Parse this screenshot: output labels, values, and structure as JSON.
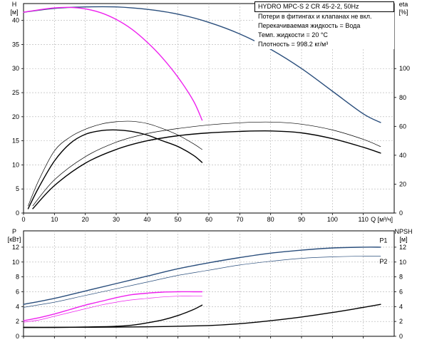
{
  "info": {
    "model": "HYDRO MPC-S 2 CR 45-2-2, 50Hz",
    "notes": [
      "Потери в фитингах и клапанах не вкл.",
      "Перекачиваемая жидкость = Вода",
      "Темп. жидкости = 20 °C",
      "Плотность = 998.2 кг/м³"
    ]
  },
  "chart_data": [
    {
      "type": "line",
      "panel": "top",
      "xlabel": "Q [м³/ч]",
      "x_ticks": [
        0,
        10,
        20,
        30,
        40,
        50,
        60,
        70,
        80,
        90,
        100,
        110
      ],
      "xlim": [
        0,
        120
      ],
      "grid": true,
      "left_axis": {
        "label": [
          "H",
          "[м]"
        ],
        "ticks": [
          0,
          5,
          10,
          15,
          20,
          25,
          30,
          35,
          40
        ],
        "ylim": [
          0,
          43.5
        ]
      },
      "right_axis": {
        "label": [
          "eta",
          "[%]"
        ],
        "ticks": [
          0,
          20,
          40,
          60,
          80,
          100
        ],
        "ylim": [
          0,
          145
        ]
      },
      "series": [
        {
          "kind": "head",
          "axis": "left",
          "color": "#2a4e7c",
          "width": 1.4,
          "x": [
            0,
            10,
            20,
            30,
            40,
            50,
            60,
            70,
            80,
            90,
            100,
            110,
            115.6
          ],
          "y": [
            41.7,
            42.5,
            42.8,
            42.8,
            42.3,
            41.3,
            39.6,
            37.2,
            34.0,
            30.0,
            25.3,
            20.6,
            18.8
          ]
        },
        {
          "kind": "head",
          "axis": "left",
          "color": "#ee22ee",
          "width": 1.4,
          "x": [
            0,
            5,
            10,
            15,
            20,
            25,
            30,
            35,
            40,
            45,
            50,
            55,
            57.8
          ],
          "y": [
            41.7,
            42.2,
            42.6,
            42.7,
            42.4,
            41.6,
            40.2,
            38.2,
            35.5,
            32.2,
            28.2,
            23.3,
            19.3
          ]
        },
        {
          "kind": "efficiency",
          "axis": "right",
          "color": "#000000",
          "width": 1.4,
          "x": [
            1.5,
            5,
            10,
            15,
            20,
            25,
            30,
            35,
            40,
            45,
            50,
            55,
            57.8
          ],
          "y": [
            3,
            18,
            36,
            48,
            54.5,
            57,
            57.5,
            56.5,
            54,
            50,
            46,
            40,
            35
          ]
        },
        {
          "kind": "efficiency",
          "axis": "right",
          "color": "#000000",
          "width": 0.7,
          "x": [
            1.5,
            5,
            10,
            15,
            20,
            25,
            30,
            35,
            40,
            45,
            50,
            55,
            57.8
          ],
          "y": [
            5,
            23,
            43,
            52.5,
            58,
            61.5,
            63.2,
            63.5,
            62,
            58.5,
            54,
            48,
            44
          ]
        },
        {
          "kind": "efficiency",
          "axis": "right",
          "color": "#000000",
          "width": 1.4,
          "x": [
            3,
            10,
            20,
            30,
            40,
            50,
            60,
            70,
            80,
            90,
            100,
            110,
            115.6
          ],
          "y": [
            3,
            19,
            34.5,
            44,
            50,
            53.5,
            55.5,
            56.5,
            56.8,
            55.5,
            51.5,
            45.5,
            41.5
          ]
        },
        {
          "kind": "efficiency",
          "axis": "right",
          "color": "#000000",
          "width": 0.7,
          "x": [
            3,
            10,
            20,
            30,
            40,
            50,
            60,
            70,
            80,
            90,
            100,
            110,
            115.6
          ],
          "y": [
            5,
            23,
            39,
            49,
            55,
            58.5,
            61,
            62.5,
            63,
            61.5,
            57.5,
            51,
            46
          ]
        }
      ]
    },
    {
      "type": "line",
      "panel": "bottom",
      "x_ticks": [
        0,
        10,
        20,
        30,
        40,
        50,
        60,
        70,
        80,
        90,
        100,
        110
      ],
      "xlim": [
        0,
        120
      ],
      "grid": true,
      "left_axis": {
        "label": [
          "P",
          "[кВт]"
        ],
        "ticks": [
          0,
          2,
          4,
          6,
          8,
          10,
          12
        ],
        "ylim": [
          0,
          14.2
        ]
      },
      "right_axis": {
        "label": [
          "NPSH",
          "[м]"
        ],
        "ticks": [
          0,
          2,
          4,
          6,
          8,
          10,
          12
        ],
        "ylim": [
          0,
          14.2
        ]
      },
      "labels": [
        {
          "text": "P1",
          "x": 116.5,
          "y": 12.6
        },
        {
          "text": "P2",
          "x": 116.5,
          "y": 9.8
        }
      ],
      "series": [
        {
          "name": "P1",
          "kind": "power",
          "color": "#2a4e7c",
          "width": 1.4,
          "x": [
            0,
            10,
            20,
            30,
            40,
            50,
            60,
            70,
            80,
            90,
            100,
            110,
            115.6
          ],
          "y": [
            4.3,
            5.1,
            6.1,
            7.1,
            8.1,
            9.1,
            9.9,
            10.6,
            11.2,
            11.6,
            11.9,
            12.0,
            12.0
          ]
        },
        {
          "name": "P2",
          "kind": "power",
          "color": "#2a4e7c",
          "width": 0.7,
          "x": [
            0,
            10,
            20,
            30,
            40,
            50,
            60,
            70,
            80,
            90,
            100,
            110,
            115.6
          ],
          "y": [
            3.9,
            4.6,
            5.5,
            6.4,
            7.3,
            8.2,
            8.9,
            9.6,
            10.1,
            10.5,
            10.7,
            10.8,
            10.8
          ]
        },
        {
          "kind": "power",
          "color": "#ee22ee",
          "width": 1.4,
          "x": [
            0,
            5,
            10,
            15,
            20,
            25,
            30,
            35,
            40,
            45,
            50,
            55,
            57.8
          ],
          "y": [
            2.1,
            2.5,
            3.0,
            3.6,
            4.2,
            4.7,
            5.2,
            5.6,
            5.8,
            5.95,
            6.0,
            6.0,
            6.0
          ]
        },
        {
          "kind": "power",
          "color": "#ee22ee",
          "width": 0.7,
          "x": [
            0,
            5,
            10,
            15,
            20,
            25,
            30,
            35,
            40,
            45,
            50,
            55,
            57.8
          ],
          "y": [
            1.9,
            2.2,
            2.7,
            3.2,
            3.7,
            4.2,
            4.6,
            4.9,
            5.1,
            5.3,
            5.4,
            5.4,
            5.4
          ]
        },
        {
          "kind": "npsh",
          "color": "#000000",
          "width": 1.4,
          "x": [
            0,
            10,
            20,
            30,
            35,
            40,
            45,
            50,
            55,
            57.8
          ],
          "y": [
            1.2,
            1.2,
            1.25,
            1.35,
            1.5,
            1.8,
            2.2,
            2.8,
            3.6,
            4.2
          ]
        },
        {
          "kind": "npsh",
          "color": "#000000",
          "width": 1.4,
          "x": [
            0,
            20,
            40,
            60,
            70,
            80,
            90,
            100,
            110,
            115.6
          ],
          "y": [
            1.2,
            1.22,
            1.28,
            1.45,
            1.7,
            2.1,
            2.6,
            3.2,
            3.9,
            4.3
          ]
        }
      ]
    }
  ]
}
